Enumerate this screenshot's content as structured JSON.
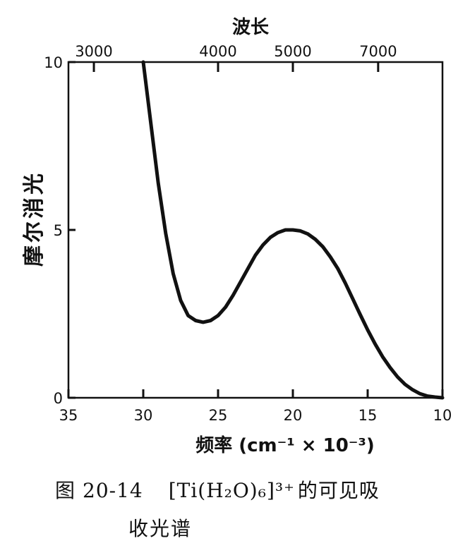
{
  "chart_data": {
    "type": "line",
    "title": "",
    "ylabel": "摩尔消光",
    "xlabel": "频率 (cm⁻¹ × 10⁻³)",
    "top_axis_label": "波长",
    "xlim": [
      35,
      10
    ],
    "ylim": [
      0,
      10
    ],
    "x_ticks": [
      35,
      30,
      25,
      20,
      15,
      10
    ],
    "y_ticks": [
      0,
      5,
      10
    ],
    "top_ticks": [
      {
        "label": "3000",
        "x": 33.3
      },
      {
        "label": "4000",
        "x": 25.0
      },
      {
        "label": "5000",
        "x": 20.0
      },
      {
        "label": "7000",
        "x": 14.3
      }
    ],
    "grid": false,
    "series": [
      {
        "x": [
          30.0,
          29.5,
          29.0,
          28.5,
          28.0,
          27.5,
          27.0,
          26.5,
          26.0,
          25.5,
          25.0,
          24.5,
          24.0,
          23.5,
          23.0,
          22.5,
          22.0,
          21.5,
          21.0,
          20.5,
          20.0,
          19.5,
          19.0,
          18.5,
          18.0,
          17.5,
          17.0,
          16.5,
          16.0,
          15.5,
          15.0,
          14.5,
          14.0,
          13.5,
          13.0,
          12.5,
          12.0,
          11.5,
          11.0,
          10.5,
          10.0
        ],
        "y": [
          10.0,
          8.2,
          6.4,
          4.9,
          3.7,
          2.9,
          2.45,
          2.3,
          2.25,
          2.3,
          2.45,
          2.7,
          3.05,
          3.45,
          3.85,
          4.25,
          4.55,
          4.78,
          4.92,
          5.0,
          5.0,
          4.97,
          4.88,
          4.72,
          4.5,
          4.2,
          3.85,
          3.42,
          2.95,
          2.48,
          2.02,
          1.6,
          1.22,
          0.9,
          0.62,
          0.4,
          0.24,
          0.12,
          0.05,
          0.02,
          0.0
        ]
      }
    ]
  },
  "caption": {
    "line1_fig": "图",
    "line1_num": "20-14",
    "line1_formula": "[Ti(H₂O)₆]³⁺",
    "line1_text": "的可见吸",
    "line2_text": "收光谱"
  }
}
